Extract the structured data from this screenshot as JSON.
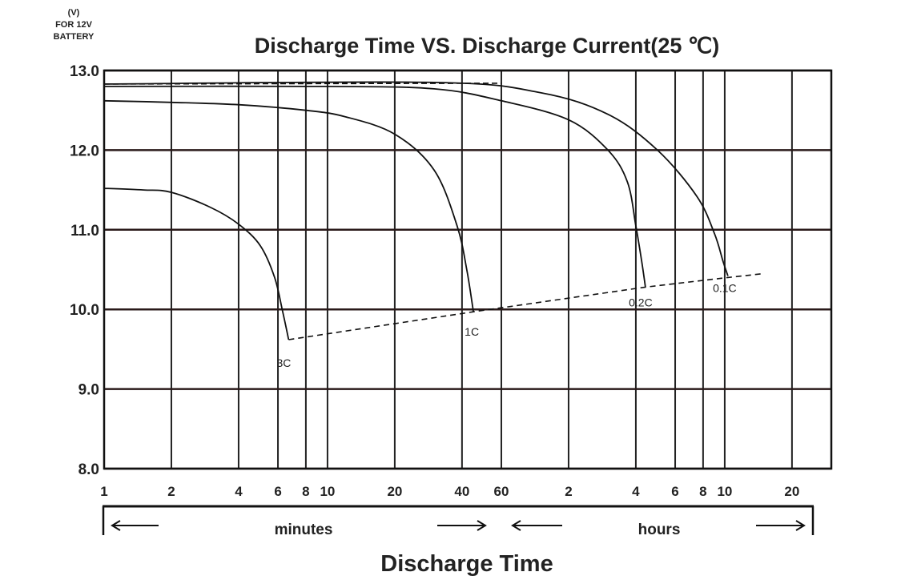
{
  "chart_data": {
    "type": "line",
    "title": "Discharge Time VS. Discharge Current(25 ℃)",
    "unit_label": [
      "(V)",
      "FOR 12V",
      "BATTERY"
    ],
    "xlabel": "Discharge Time",
    "ylim": [
      8.0,
      13.0
    ],
    "yticks": [
      8.0,
      9.0,
      10.0,
      11.0,
      12.0,
      13.0
    ],
    "ytick_labels": [
      "8.0",
      "9.0",
      "10.0",
      "11.0",
      "12.0",
      "13.0"
    ],
    "x_scale": "log",
    "x_unit": "minutes",
    "x_range_minutes": [
      1,
      1800
    ],
    "xticks": [
      {
        "minutes": 1,
        "label": "1"
      },
      {
        "minutes": 2,
        "label": "2"
      },
      {
        "minutes": 4,
        "label": "4"
      },
      {
        "minutes": 6,
        "label": "6"
      },
      {
        "minutes": 8,
        "label": "8"
      },
      {
        "minutes": 10,
        "label": "10"
      },
      {
        "minutes": 20,
        "label": "20"
      },
      {
        "minutes": 40,
        "label": "40"
      },
      {
        "minutes": 60,
        "label": "60"
      },
      {
        "minutes": 120,
        "label": "2"
      },
      {
        "minutes": 240,
        "label": "4"
      },
      {
        "minutes": 360,
        "label": "6"
      },
      {
        "minutes": 480,
        "label": "8"
      },
      {
        "minutes": 600,
        "label": "10"
      },
      {
        "minutes": 1200,
        "label": "20"
      }
    ],
    "gridlines_minutes": [
      1,
      2,
      4,
      6,
      8,
      10,
      20,
      40,
      60,
      120,
      240,
      360,
      480,
      600,
      1200,
      1800
    ],
    "grid": true,
    "range_labels": {
      "minutes": "minutes",
      "hours": "hours"
    },
    "series": [
      {
        "name": "3C",
        "points": [
          [
            1,
            11.52
          ],
          [
            1.5,
            11.5
          ],
          [
            2,
            11.47
          ],
          [
            3,
            11.28
          ],
          [
            4,
            11.07
          ],
          [
            5,
            10.8
          ],
          [
            5.8,
            10.4
          ],
          [
            6.3,
            9.97
          ],
          [
            6.7,
            9.62
          ]
        ]
      },
      {
        "name": "1C",
        "points": [
          [
            1,
            12.62
          ],
          [
            2,
            12.6
          ],
          [
            4,
            12.57
          ],
          [
            8,
            12.5
          ],
          [
            12,
            12.42
          ],
          [
            20,
            12.2
          ],
          [
            30,
            11.75
          ],
          [
            38,
            11.05
          ],
          [
            42,
            10.5
          ],
          [
            45,
            9.97
          ]
        ]
      },
      {
        "name": "0.2C",
        "points": [
          [
            1,
            12.8
          ],
          [
            10,
            12.8
          ],
          [
            30,
            12.77
          ],
          [
            60,
            12.62
          ],
          [
            120,
            12.38
          ],
          [
            180,
            12.0
          ],
          [
            220,
            11.6
          ],
          [
            240,
            11.05
          ],
          [
            255,
            10.6
          ],
          [
            265,
            10.28
          ]
        ]
      },
      {
        "name": "0.1C",
        "points": [
          [
            1,
            12.83
          ],
          [
            30,
            12.85
          ],
          [
            90,
            12.72
          ],
          [
            180,
            12.45
          ],
          [
            300,
            12.0
          ],
          [
            450,
            11.42
          ],
          [
            540,
            10.95
          ],
          [
            590,
            10.6
          ],
          [
            620,
            10.42
          ]
        ]
      }
    ],
    "cutoff_line": [
      [
        6.7,
        9.62
      ],
      [
        45,
        9.97
      ],
      [
        265,
        10.28
      ],
      [
        620,
        10.4
      ],
      [
        900,
        10.45
      ]
    ]
  }
}
